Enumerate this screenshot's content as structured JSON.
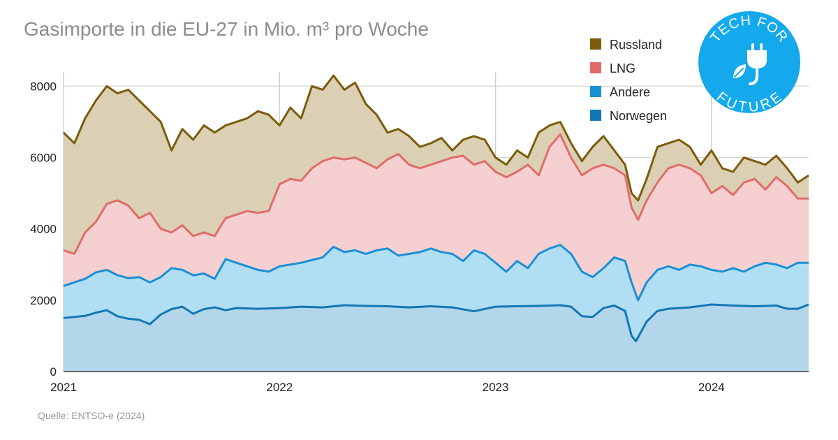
{
  "chart_data": {
    "type": "area",
    "stacked": true,
    "title": "Gasimporte in die EU-27 in Mio. m³ pro Woche",
    "xlabel": "",
    "ylabel": "",
    "x_range": [
      2021.0,
      2024.45
    ],
    "ylim": [
      0,
      8400
    ],
    "y_ticks": [
      0,
      2000,
      4000,
      6000,
      8000
    ],
    "x_ticks": [
      {
        "value": 2021,
        "label": "2021"
      },
      {
        "value": 2022,
        "label": "2022"
      },
      {
        "value": 2023,
        "label": "2023"
      },
      {
        "value": 2024,
        "label": "2024"
      }
    ],
    "grid": true,
    "legend_position": "top-right",
    "series": [
      {
        "name": "Norwegen",
        "line_color": "#1277b5",
        "fill_color": "#b4d6ea",
        "points": [
          [
            2021.0,
            1500
          ],
          [
            2021.1,
            1560
          ],
          [
            2021.15,
            1650
          ],
          [
            2021.2,
            1720
          ],
          [
            2021.25,
            1550
          ],
          [
            2021.3,
            1480
          ],
          [
            2021.35,
            1450
          ],
          [
            2021.4,
            1330
          ],
          [
            2021.45,
            1600
          ],
          [
            2021.5,
            1750
          ],
          [
            2021.55,
            1820
          ],
          [
            2021.6,
            1620
          ],
          [
            2021.65,
            1750
          ],
          [
            2021.7,
            1800
          ],
          [
            2021.75,
            1720
          ],
          [
            2021.8,
            1780
          ],
          [
            2021.9,
            1760
          ],
          [
            2022.0,
            1780
          ],
          [
            2022.1,
            1820
          ],
          [
            2022.2,
            1800
          ],
          [
            2022.3,
            1860
          ],
          [
            2022.4,
            1840
          ],
          [
            2022.5,
            1830
          ],
          [
            2022.6,
            1800
          ],
          [
            2022.7,
            1830
          ],
          [
            2022.8,
            1800
          ],
          [
            2022.9,
            1690
          ],
          [
            2023.0,
            1820
          ],
          [
            2023.1,
            1830
          ],
          [
            2023.2,
            1840
          ],
          [
            2023.3,
            1860
          ],
          [
            2023.35,
            1820
          ],
          [
            2023.4,
            1550
          ],
          [
            2023.45,
            1530
          ],
          [
            2023.5,
            1780
          ],
          [
            2023.55,
            1850
          ],
          [
            2023.6,
            1700
          ],
          [
            2023.63,
            1000
          ],
          [
            2023.65,
            850
          ],
          [
            2023.7,
            1400
          ],
          [
            2023.75,
            1700
          ],
          [
            2023.8,
            1760
          ],
          [
            2023.9,
            1800
          ],
          [
            2024.0,
            1880
          ],
          [
            2024.1,
            1850
          ],
          [
            2024.2,
            1830
          ],
          [
            2024.3,
            1850
          ],
          [
            2024.35,
            1760
          ],
          [
            2024.4,
            1760
          ],
          [
            2024.45,
            1880
          ]
        ]
      },
      {
        "name": "Andere",
        "line_color": "#1a8fd6",
        "fill_color": "#b1def3",
        "points": [
          [
            2021.0,
            2400
          ],
          [
            2021.1,
            2600
          ],
          [
            2021.15,
            2780
          ],
          [
            2021.2,
            2850
          ],
          [
            2021.25,
            2700
          ],
          [
            2021.3,
            2620
          ],
          [
            2021.35,
            2650
          ],
          [
            2021.4,
            2500
          ],
          [
            2021.45,
            2650
          ],
          [
            2021.5,
            2900
          ],
          [
            2021.55,
            2850
          ],
          [
            2021.6,
            2700
          ],
          [
            2021.65,
            2750
          ],
          [
            2021.7,
            2600
          ],
          [
            2021.75,
            3150
          ],
          [
            2021.8,
            3050
          ],
          [
            2021.85,
            2950
          ],
          [
            2021.9,
            2850
          ],
          [
            2021.95,
            2800
          ],
          [
            2022.0,
            2950
          ],
          [
            2022.1,
            3050
          ],
          [
            2022.2,
            3200
          ],
          [
            2022.25,
            3500
          ],
          [
            2022.3,
            3350
          ],
          [
            2022.35,
            3400
          ],
          [
            2022.4,
            3300
          ],
          [
            2022.45,
            3400
          ],
          [
            2022.5,
            3450
          ],
          [
            2022.55,
            3250
          ],
          [
            2022.6,
            3300
          ],
          [
            2022.65,
            3350
          ],
          [
            2022.7,
            3450
          ],
          [
            2022.75,
            3350
          ],
          [
            2022.8,
            3300
          ],
          [
            2022.85,
            3100
          ],
          [
            2022.9,
            3400
          ],
          [
            2022.95,
            3300
          ],
          [
            2023.0,
            3050
          ],
          [
            2023.05,
            2800
          ],
          [
            2023.1,
            3100
          ],
          [
            2023.15,
            2900
          ],
          [
            2023.2,
            3300
          ],
          [
            2023.25,
            3450
          ],
          [
            2023.3,
            3550
          ],
          [
            2023.35,
            3300
          ],
          [
            2023.4,
            2800
          ],
          [
            2023.45,
            2650
          ],
          [
            2023.5,
            2900
          ],
          [
            2023.55,
            3200
          ],
          [
            2023.6,
            3100
          ],
          [
            2023.63,
            2500
          ],
          [
            2023.66,
            2000
          ],
          [
            2023.7,
            2500
          ],
          [
            2023.75,
            2850
          ],
          [
            2023.8,
            2950
          ],
          [
            2023.85,
            2850
          ],
          [
            2023.9,
            3000
          ],
          [
            2023.95,
            2950
          ],
          [
            2024.0,
            2850
          ],
          [
            2024.05,
            2800
          ],
          [
            2024.1,
            2900
          ],
          [
            2024.15,
            2800
          ],
          [
            2024.2,
            2950
          ],
          [
            2024.25,
            3050
          ],
          [
            2024.3,
            3000
          ],
          [
            2024.35,
            2900
          ],
          [
            2024.4,
            3050
          ],
          [
            2024.45,
            3050
          ]
        ]
      },
      {
        "name": "LNG",
        "line_color": "#e06c6a",
        "fill_color": "#f6d0d0",
        "points": [
          [
            2021.0,
            3400
          ],
          [
            2021.05,
            3300
          ],
          [
            2021.1,
            3900
          ],
          [
            2021.15,
            4200
          ],
          [
            2021.2,
            4700
          ],
          [
            2021.25,
            4800
          ],
          [
            2021.3,
            4650
          ],
          [
            2021.35,
            4300
          ],
          [
            2021.4,
            4450
          ],
          [
            2021.45,
            4000
          ],
          [
            2021.5,
            3900
          ],
          [
            2021.55,
            4100
          ],
          [
            2021.6,
            3800
          ],
          [
            2021.65,
            3900
          ],
          [
            2021.7,
            3800
          ],
          [
            2021.75,
            4300
          ],
          [
            2021.8,
            4400
          ],
          [
            2021.85,
            4500
          ],
          [
            2021.9,
            4450
          ],
          [
            2021.95,
            4500
          ],
          [
            2022.0,
            5250
          ],
          [
            2022.05,
            5400
          ],
          [
            2022.1,
            5350
          ],
          [
            2022.15,
            5700
          ],
          [
            2022.2,
            5900
          ],
          [
            2022.25,
            6000
          ],
          [
            2022.3,
            5950
          ],
          [
            2022.35,
            6000
          ],
          [
            2022.4,
            5850
          ],
          [
            2022.45,
            5700
          ],
          [
            2022.5,
            5950
          ],
          [
            2022.55,
            6100
          ],
          [
            2022.6,
            5800
          ],
          [
            2022.65,
            5700
          ],
          [
            2022.7,
            5800
          ],
          [
            2022.75,
            5900
          ],
          [
            2022.8,
            6000
          ],
          [
            2022.85,
            6050
          ],
          [
            2022.9,
            5800
          ],
          [
            2022.95,
            5900
          ],
          [
            2023.0,
            5600
          ],
          [
            2023.05,
            5450
          ],
          [
            2023.1,
            5600
          ],
          [
            2023.15,
            5800
          ],
          [
            2023.2,
            5500
          ],
          [
            2023.25,
            6300
          ],
          [
            2023.3,
            6650
          ],
          [
            2023.35,
            6000
          ],
          [
            2023.4,
            5500
          ],
          [
            2023.45,
            5700
          ],
          [
            2023.5,
            5800
          ],
          [
            2023.55,
            5700
          ],
          [
            2023.6,
            5500
          ],
          [
            2023.63,
            4600
          ],
          [
            2023.66,
            4250
          ],
          [
            2023.7,
            4800
          ],
          [
            2023.75,
            5300
          ],
          [
            2023.8,
            5700
          ],
          [
            2023.85,
            5800
          ],
          [
            2023.9,
            5700
          ],
          [
            2023.95,
            5500
          ],
          [
            2024.0,
            5000
          ],
          [
            2024.05,
            5200
          ],
          [
            2024.1,
            4950
          ],
          [
            2024.15,
            5300
          ],
          [
            2024.2,
            5400
          ],
          [
            2024.25,
            5100
          ],
          [
            2024.3,
            5450
          ],
          [
            2024.35,
            5200
          ],
          [
            2024.4,
            4850
          ],
          [
            2024.45,
            4850
          ]
        ]
      },
      {
        "name": "Russland",
        "line_color": "#7a5c0a",
        "fill_color": "#dbd0b4",
        "points": [
          [
            2021.0,
            6700
          ],
          [
            2021.05,
            6400
          ],
          [
            2021.1,
            7100
          ],
          [
            2021.15,
            7600
          ],
          [
            2021.2,
            8000
          ],
          [
            2021.25,
            7800
          ],
          [
            2021.3,
            7900
          ],
          [
            2021.35,
            7600
          ],
          [
            2021.4,
            7300
          ],
          [
            2021.45,
            7000
          ],
          [
            2021.5,
            6200
          ],
          [
            2021.55,
            6800
          ],
          [
            2021.6,
            6500
          ],
          [
            2021.65,
            6900
          ],
          [
            2021.7,
            6700
          ],
          [
            2021.75,
            6900
          ],
          [
            2021.8,
            7000
          ],
          [
            2021.85,
            7100
          ],
          [
            2021.9,
            7300
          ],
          [
            2021.95,
            7200
          ],
          [
            2022.0,
            6900
          ],
          [
            2022.05,
            7400
          ],
          [
            2022.1,
            7100
          ],
          [
            2022.15,
            8000
          ],
          [
            2022.2,
            7900
          ],
          [
            2022.25,
            8300
          ],
          [
            2022.3,
            7900
          ],
          [
            2022.35,
            8100
          ],
          [
            2022.4,
            7500
          ],
          [
            2022.45,
            7200
          ],
          [
            2022.5,
            6700
          ],
          [
            2022.55,
            6800
          ],
          [
            2022.6,
            6600
          ],
          [
            2022.65,
            6300
          ],
          [
            2022.7,
            6400
          ],
          [
            2022.75,
            6550
          ],
          [
            2022.8,
            6200
          ],
          [
            2022.85,
            6500
          ],
          [
            2022.9,
            6600
          ],
          [
            2022.95,
            6500
          ],
          [
            2023.0,
            6000
          ],
          [
            2023.05,
            5800
          ],
          [
            2023.1,
            6200
          ],
          [
            2023.15,
            6000
          ],
          [
            2023.2,
            6700
          ],
          [
            2023.25,
            6900
          ],
          [
            2023.3,
            7000
          ],
          [
            2023.35,
            6400
          ],
          [
            2023.4,
            5900
          ],
          [
            2023.45,
            6300
          ],
          [
            2023.5,
            6600
          ],
          [
            2023.55,
            6200
          ],
          [
            2023.6,
            5800
          ],
          [
            2023.63,
            5000
          ],
          [
            2023.66,
            4800
          ],
          [
            2023.7,
            5400
          ],
          [
            2023.75,
            6300
          ],
          [
            2023.8,
            6400
          ],
          [
            2023.85,
            6500
          ],
          [
            2023.9,
            6300
          ],
          [
            2023.95,
            5800
          ],
          [
            2024.0,
            6200
          ],
          [
            2024.05,
            5700
          ],
          [
            2024.1,
            5600
          ],
          [
            2024.15,
            6000
          ],
          [
            2024.2,
            5900
          ],
          [
            2024.25,
            5800
          ],
          [
            2024.3,
            6050
          ],
          [
            2024.35,
            5700
          ],
          [
            2024.4,
            5300
          ],
          [
            2024.45,
            5500
          ]
        ]
      }
    ]
  },
  "legend": {
    "items": [
      {
        "label": "Russland",
        "color": "#7a5c0a"
      },
      {
        "label": "LNG",
        "color": "#e06c6a"
      },
      {
        "label": "Andere",
        "color": "#1a8fd6"
      },
      {
        "label": "Norwegen",
        "color": "#1277b5"
      }
    ]
  },
  "source": "Quelle: ENTSO-e (2024)",
  "logo": {
    "icon": "plug-leaf-icon",
    "color": "#14a9ec",
    "line1": "TECH FOR",
    "line2": "FUTURE"
  }
}
